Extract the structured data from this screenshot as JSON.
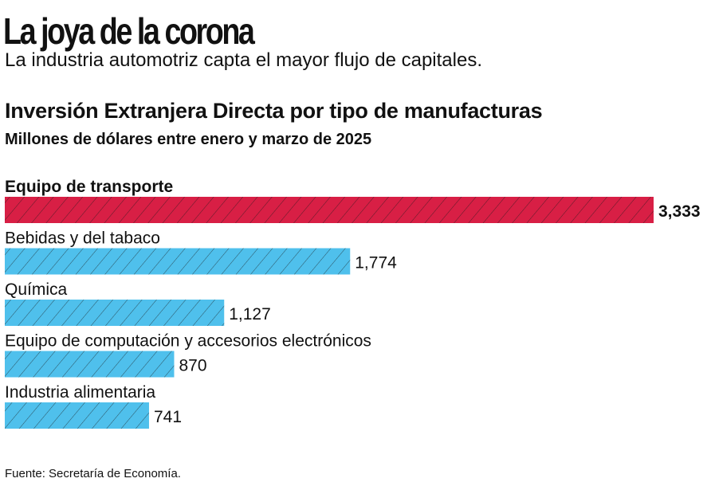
{
  "header": {
    "title": "La joya de la corona",
    "subtitle": "La industria automotriz capta el mayor flujo de capitales."
  },
  "chart_data": {
    "type": "bar",
    "orientation": "horizontal",
    "title": "Inversión Extranjera Directa por tipo de manufacturas",
    "subtitle": "Millones de dólares entre enero y marzo de 2025",
    "categories": [
      "Equipo de transporte",
      "Bebidas y del tabaco",
      "Química",
      "Equipo de computación y accesorios electrónicos",
      "Industria alimentaria"
    ],
    "values": [
      3333,
      1774,
      1127,
      870,
      741
    ],
    "value_labels": [
      "3,333",
      "1,774",
      "1,127",
      "870",
      "741"
    ],
    "highlight_index": 0,
    "colors": {
      "highlight": "#d81f45",
      "default": "#4fc0ec",
      "hatch": "#1a1a1a"
    },
    "xlim": [
      0,
      3333
    ],
    "grid": false
  },
  "footer": {
    "source": "Fuente: Secretaría de Economía."
  }
}
